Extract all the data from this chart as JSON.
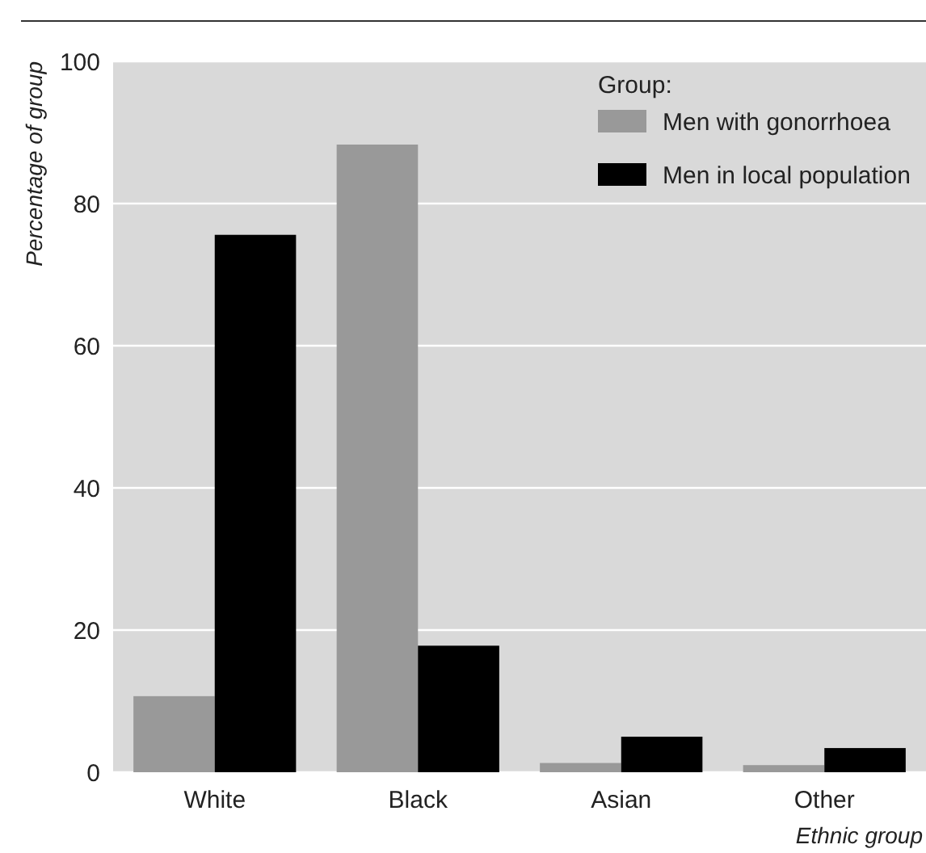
{
  "chart_data": {
    "type": "bar",
    "xlabel": "Ethnic group",
    "ylabel": "Percentage of group",
    "legend_title": "Group:",
    "categories": [
      "White",
      "Black",
      "Asian",
      "Other"
    ],
    "series": [
      {
        "name": "Men with gonorrhoea",
        "color": "#999999",
        "values": [
          10.7,
          88.3,
          1.3,
          1.0
        ]
      },
      {
        "name": "Men in local population",
        "color": "#000000",
        "values": [
          75.6,
          17.8,
          5.0,
          3.4
        ]
      }
    ],
    "ylim": [
      0,
      100
    ],
    "yticks": [
      0,
      20,
      40,
      60,
      80,
      100
    ],
    "grid": "y",
    "legend": "top right"
  }
}
